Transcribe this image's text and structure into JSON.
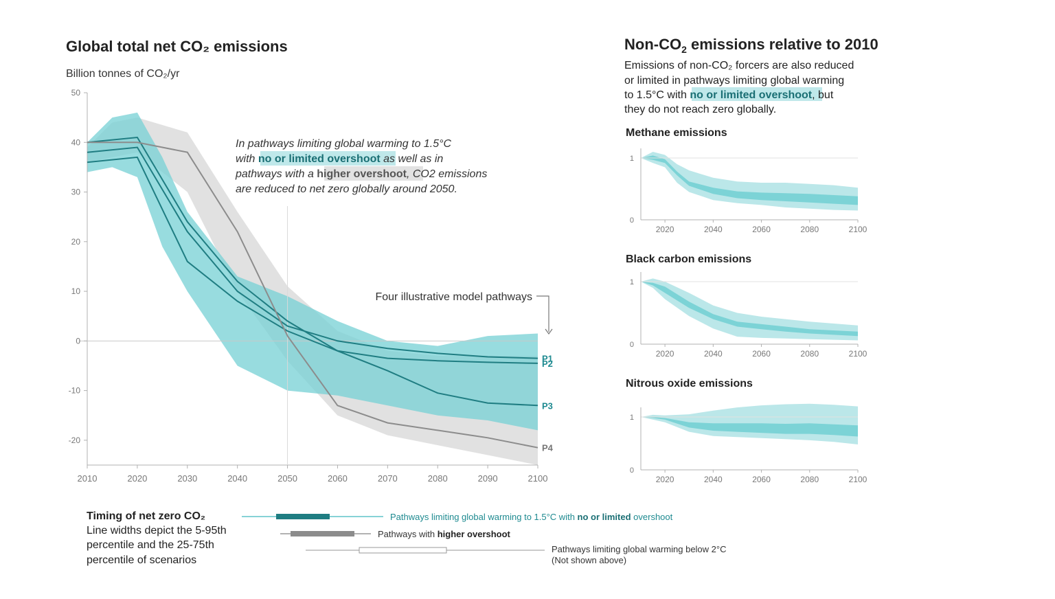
{
  "colors": {
    "teal_light": "#b7e6e8",
    "teal_mid": "#75d0d4",
    "teal_dark": "#1f7d82",
    "teal_text": "#1e8a90",
    "grey_band": "#dcdcdc",
    "grey_line": "#8c8c8c",
    "axis": "#b0b0b0",
    "highlight_teal": "#bfe8ea",
    "highlight_grey": "#e2e2e2"
  },
  "main_chart": {
    "title": "Global total net CO₂ emissions",
    "ylabel": "Billion tonnes of CO₂/yr",
    "annotation": {
      "line1": "In pathways limiting global warming to 1.5°C",
      "line2_pre": "with ",
      "line2_hl": "no or limited overshoot",
      "line2_post": " as well as in",
      "line3_pre": "pathways with a ",
      "line3_hl": "higher overshoot",
      "line3_post": ", CO2 emissions",
      "line4": "are reduced to net zero globally around 2050."
    },
    "pathways_label": "Four illustrative model pathways"
  },
  "timing_legend": {
    "title": "Timing of net zero CO₂",
    "desc": [
      "Line widths depict the 5-95th",
      "percentile and the 25-75th",
      "percentile of scenarios"
    ],
    "rows": [
      {
        "label_pre": "Pathways limiting global warming to 1.5°C with ",
        "label_bold": "no or limited",
        "label_post": " overshoot"
      },
      {
        "label_pre": "Pathways with ",
        "label_bold": "higher overshoot",
        "label_post": ""
      },
      {
        "label_line1": "Pathways limiting global warming below 2°C",
        "label_line2": "(Not shown above)"
      }
    ]
  },
  "side_panel": {
    "title_pre": "Non-CO",
    "title_sub": "2",
    "title_post": " emissions relative to 2010",
    "desc1": "Emissions of non-CO₂ forcers are also reduced",
    "desc2": "or limited in pathways limiting global warming",
    "desc3_pre": "to 1.5°C with ",
    "desc3_hl": "no or limited overshoot",
    "desc3_post": ", but",
    "desc4": "they do not reach zero globally.",
    "charts": [
      {
        "title": "Methane emissions"
      },
      {
        "title": "Black carbon emissions"
      },
      {
        "title": "Nitrous oxide emissions"
      }
    ]
  },
  "chart_data": [
    {
      "type": "area",
      "title": "Global total net CO₂ emissions",
      "ylabel": "Billion tonnes of CO₂/yr",
      "xlim": [
        2010,
        2100
      ],
      "ylim": [
        -25,
        50
      ],
      "x_ticks": [
        2010,
        2020,
        2030,
        2040,
        2050,
        2060,
        2070,
        2080,
        2090,
        2100
      ],
      "y_ticks": [
        50,
        40,
        30,
        20,
        10,
        0,
        -10,
        -20
      ],
      "bands": [
        {
          "name": "higher overshoot",
          "x": [
            2010,
            2015,
            2020,
            2030,
            2040,
            2050,
            2060,
            2070,
            2080,
            2090,
            2100
          ],
          "upper": [
            39,
            44,
            45,
            42,
            26,
            11,
            2,
            -2,
            -3,
            -3,
            -3
          ],
          "lower": [
            36,
            37,
            38,
            30,
            10,
            -4,
            -15,
            -19,
            -21,
            -23,
            -25
          ]
        },
        {
          "name": "no or limited overshoot",
          "x": [
            2010,
            2015,
            2020,
            2025,
            2030,
            2040,
            2050,
            2060,
            2070,
            2080,
            2090,
            2100
          ],
          "upper": [
            40,
            45,
            46,
            37,
            26,
            13,
            9,
            4,
            0,
            -1,
            1,
            1.5
          ],
          "lower": [
            34,
            35,
            33,
            19,
            10,
            -5,
            -10,
            -11,
            -13,
            -15,
            -16,
            -18
          ]
        }
      ],
      "series": [
        {
          "name": "P1",
          "x": [
            2010,
            2020,
            2030,
            2040,
            2050,
            2060,
            2070,
            2080,
            2090,
            2100
          ],
          "values": [
            38,
            39,
            22,
            10,
            3,
            0,
            -1.5,
            -2.5,
            -3.2,
            -3.5
          ]
        },
        {
          "name": "P2",
          "x": [
            2010,
            2020,
            2030,
            2040,
            2050,
            2060,
            2070,
            2080,
            2090,
            2100
          ],
          "values": [
            40,
            41,
            24,
            12,
            4,
            -2,
            -3.5,
            -4,
            -4.3,
            -4.5
          ]
        },
        {
          "name": "P3",
          "x": [
            2010,
            2020,
            2030,
            2040,
            2050,
            2060,
            2070,
            2080,
            2090,
            2100
          ],
          "values": [
            36,
            37,
            16,
            8,
            2,
            -2,
            -6,
            -10.5,
            -12.5,
            -13
          ]
        },
        {
          "name": "P4",
          "x": [
            2010,
            2020,
            2030,
            2040,
            2050,
            2060,
            2070,
            2080,
            2090,
            2100
          ],
          "values": [
            40,
            40,
            38,
            22,
            1,
            -13,
            -16.5,
            -18,
            -19.5,
            -21.5
          ]
        }
      ]
    },
    {
      "type": "area",
      "title": "Methane emissions",
      "xlim": [
        2010,
        2100
      ],
      "ylim": [
        0,
        1
      ],
      "x_ticks": [
        2020,
        2040,
        2060,
        2080,
        2100
      ],
      "y_ticks": [
        0,
        1
      ],
      "x": [
        2010,
        2015,
        2020,
        2025,
        2030,
        2040,
        2050,
        2060,
        2070,
        2080,
        2090,
        2100
      ],
      "outer_upper": [
        1,
        1.1,
        1.05,
        0.9,
        0.8,
        0.68,
        0.62,
        0.6,
        0.6,
        0.58,
        0.56,
        0.52
      ],
      "outer_lower": [
        1,
        0.92,
        0.85,
        0.6,
        0.45,
        0.32,
        0.27,
        0.24,
        0.2,
        0.18,
        0.16,
        0.15
      ],
      "inner_upper": [
        1,
        1.04,
        0.98,
        0.78,
        0.62,
        0.52,
        0.46,
        0.44,
        0.43,
        0.42,
        0.4,
        0.38
      ],
      "inner_lower": [
        1,
        0.97,
        0.92,
        0.72,
        0.55,
        0.42,
        0.35,
        0.32,
        0.3,
        0.28,
        0.26,
        0.24
      ]
    },
    {
      "type": "area",
      "title": "Black carbon emissions",
      "xlim": [
        2010,
        2100
      ],
      "ylim": [
        0,
        1
      ],
      "x_ticks": [
        2020,
        2040,
        2060,
        2080,
        2100
      ],
      "y_ticks": [
        0,
        1
      ],
      "x": [
        2010,
        2015,
        2020,
        2030,
        2040,
        2050,
        2060,
        2070,
        2080,
        2090,
        2100
      ],
      "outer_upper": [
        1,
        1.05,
        1.0,
        0.82,
        0.62,
        0.5,
        0.44,
        0.4,
        0.36,
        0.33,
        0.3
      ],
      "outer_lower": [
        1,
        0.9,
        0.72,
        0.45,
        0.25,
        0.12,
        0.1,
        0.09,
        0.08,
        0.07,
        0.06
      ],
      "inner_upper": [
        1,
        0.98,
        0.92,
        0.68,
        0.48,
        0.36,
        0.32,
        0.28,
        0.24,
        0.22,
        0.2
      ],
      "inner_lower": [
        1,
        0.94,
        0.82,
        0.58,
        0.4,
        0.28,
        0.24,
        0.2,
        0.17,
        0.15,
        0.13
      ]
    },
    {
      "type": "area",
      "title": "Nitrous oxide emissions",
      "xlim": [
        2010,
        2100
      ],
      "ylim": [
        0,
        1
      ],
      "x_ticks": [
        2020,
        2040,
        2060,
        2080,
        2100
      ],
      "y_ticks": [
        0,
        1
      ],
      "x": [
        2010,
        2015,
        2020,
        2030,
        2040,
        2050,
        2060,
        2070,
        2080,
        2090,
        2100
      ],
      "outer_upper": [
        1,
        1.04,
        1.03,
        1.05,
        1.12,
        1.18,
        1.22,
        1.24,
        1.25,
        1.23,
        1.2
      ],
      "outer_lower": [
        1,
        0.95,
        0.9,
        0.72,
        0.64,
        0.62,
        0.6,
        0.58,
        0.56,
        0.53,
        0.48
      ],
      "inner_upper": [
        1,
        1.0,
        0.98,
        0.9,
        0.88,
        0.88,
        0.88,
        0.87,
        0.88,
        0.86,
        0.84
      ],
      "inner_lower": [
        1,
        0.98,
        0.95,
        0.8,
        0.74,
        0.72,
        0.7,
        0.68,
        0.68,
        0.66,
        0.63
      ]
    }
  ]
}
